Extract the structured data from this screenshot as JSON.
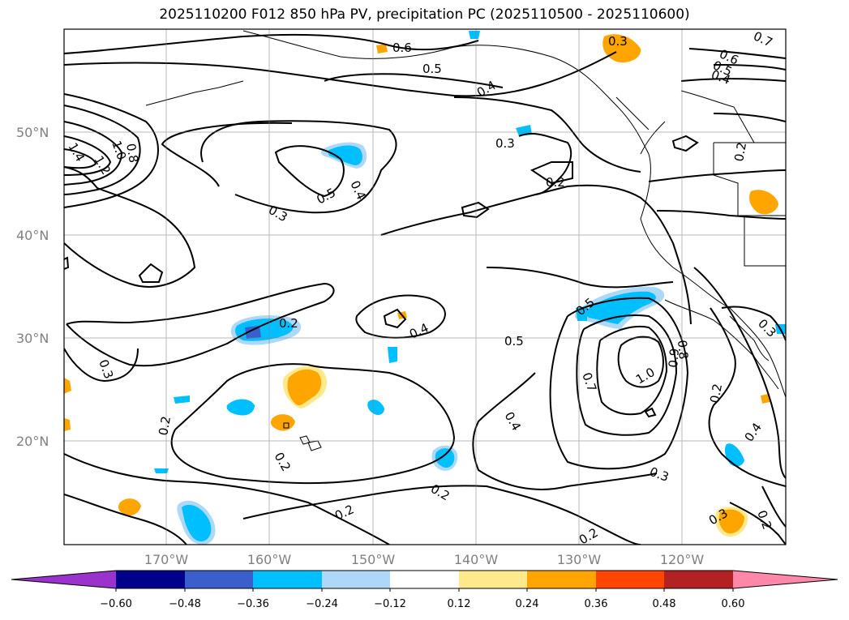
{
  "title": "2025110200 F012 850 hPa PV, precipitation PC (2025110500 - 2025110600)",
  "lat_labels": [
    "50°N",
    "40°N",
    "30°N",
    "20°N"
  ],
  "lon_labels": [
    "170°W",
    "160°W",
    "150°W",
    "140°W",
    "130°W",
    "120°W"
  ],
  "colorbar": {
    "ticks": [
      "−0.60",
      "−0.48",
      "−0.36",
      "−0.24",
      "−0.12",
      "0.12",
      "0.24",
      "0.36",
      "0.48",
      "0.60"
    ],
    "colors": [
      "#9933cc",
      "#00008b",
      "#3a5fcd",
      "#00bfff",
      "#add8f7",
      "#ffffff",
      "#ffe98a",
      "#ffa500",
      "#ff4500",
      "#b22222",
      "#ff88aa"
    ]
  },
  "contour_labels": [
    "0.6",
    "0.5",
    "0.4",
    "0.3",
    "0.2",
    "0.5",
    "0.4",
    "0.3",
    "1.4",
    "1.2",
    "1.0",
    "0.8",
    "0.2",
    "0.4",
    "0.5",
    "0.5",
    "0.7",
    "1.0",
    "0.8",
    "0.9",
    "0.3",
    "0.2",
    "0.2",
    "0.4",
    "0.3",
    "0.2",
    "0.2",
    "0.4",
    "0.2",
    "0.3",
    "0.2",
    "0.3",
    "0.6",
    "0.5",
    "0.4",
    "0.2",
    "0.3",
    "0.7",
    "0.2"
  ],
  "map_extent": {
    "lon": [
      "-180",
      "-110"
    ],
    "lat": [
      "10",
      "60"
    ]
  }
}
